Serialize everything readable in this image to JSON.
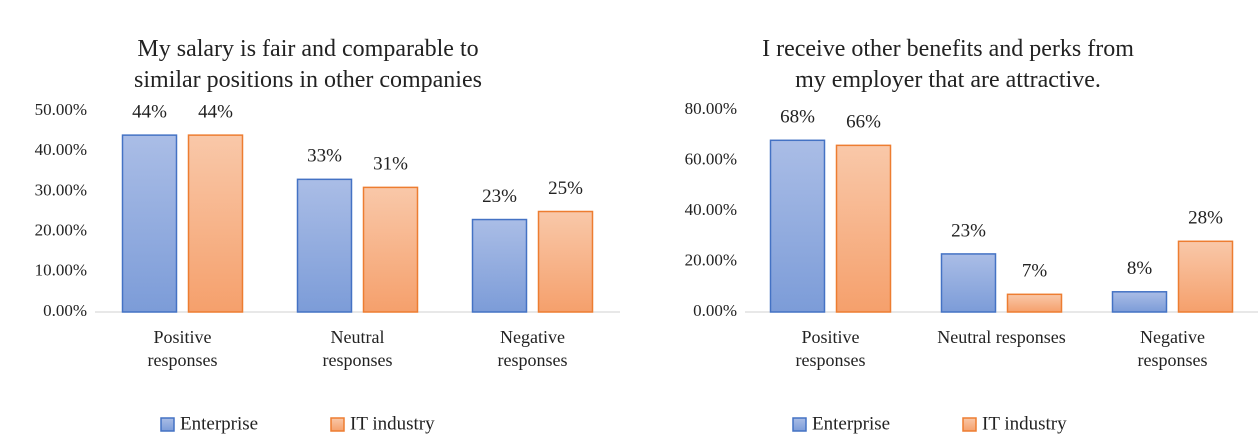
{
  "chart_data": [
    {
      "type": "bar",
      "title": "My salary is fair and comparable to\nsimilar positions in other companies",
      "categories": [
        "Positive\nresponses",
        "Neutral\nresponses",
        "Negative\nresponses"
      ],
      "series": [
        {
          "name": "Enterprise",
          "color": "#4472c4",
          "values": [
            44,
            33,
            23
          ],
          "value_labels": [
            "44%",
            "33%",
            "23%"
          ]
        },
        {
          "name": "IT industry",
          "color": "#ed7d31",
          "values": [
            44,
            31,
            25
          ],
          "value_labels": [
            "44%",
            "31%",
            "25%"
          ]
        }
      ],
      "ylim": [
        0,
        50
      ],
      "yticks": [
        {
          "value": 0,
          "label": "0.00%"
        },
        {
          "value": 10,
          "label": "10.00%"
        },
        {
          "value": 20,
          "label": "20.00%"
        },
        {
          "value": 30,
          "label": "30.00%"
        },
        {
          "value": 40,
          "label": "40.00%"
        },
        {
          "value": 50,
          "label": "50.00%"
        }
      ],
      "legend": "bottom"
    },
    {
      "type": "bar",
      "title": "I receive other benefits and perks from\nmy employer that are attractive.",
      "categories": [
        "Positive\nresponses",
        "Neutral responses",
        "Negative\nresponses"
      ],
      "series": [
        {
          "name": "Enterprise",
          "color": "#4472c4",
          "values": [
            68,
            23,
            8
          ],
          "value_labels": [
            "68%",
            "23%",
            "8%"
          ]
        },
        {
          "name": "IT industry",
          "color": "#ed7d31",
          "values": [
            66,
            7,
            28
          ],
          "value_labels": [
            "66%",
            "7%",
            "28%"
          ]
        }
      ],
      "ylim": [
        0,
        80
      ],
      "yticks": [
        {
          "value": 0,
          "label": "0.00%"
        },
        {
          "value": 20,
          "label": "20.00%"
        },
        {
          "value": 40,
          "label": "40.00%"
        },
        {
          "value": 60,
          "label": "60.00%"
        },
        {
          "value": 80,
          "label": "80.00%"
        }
      ],
      "legend": "bottom"
    }
  ]
}
